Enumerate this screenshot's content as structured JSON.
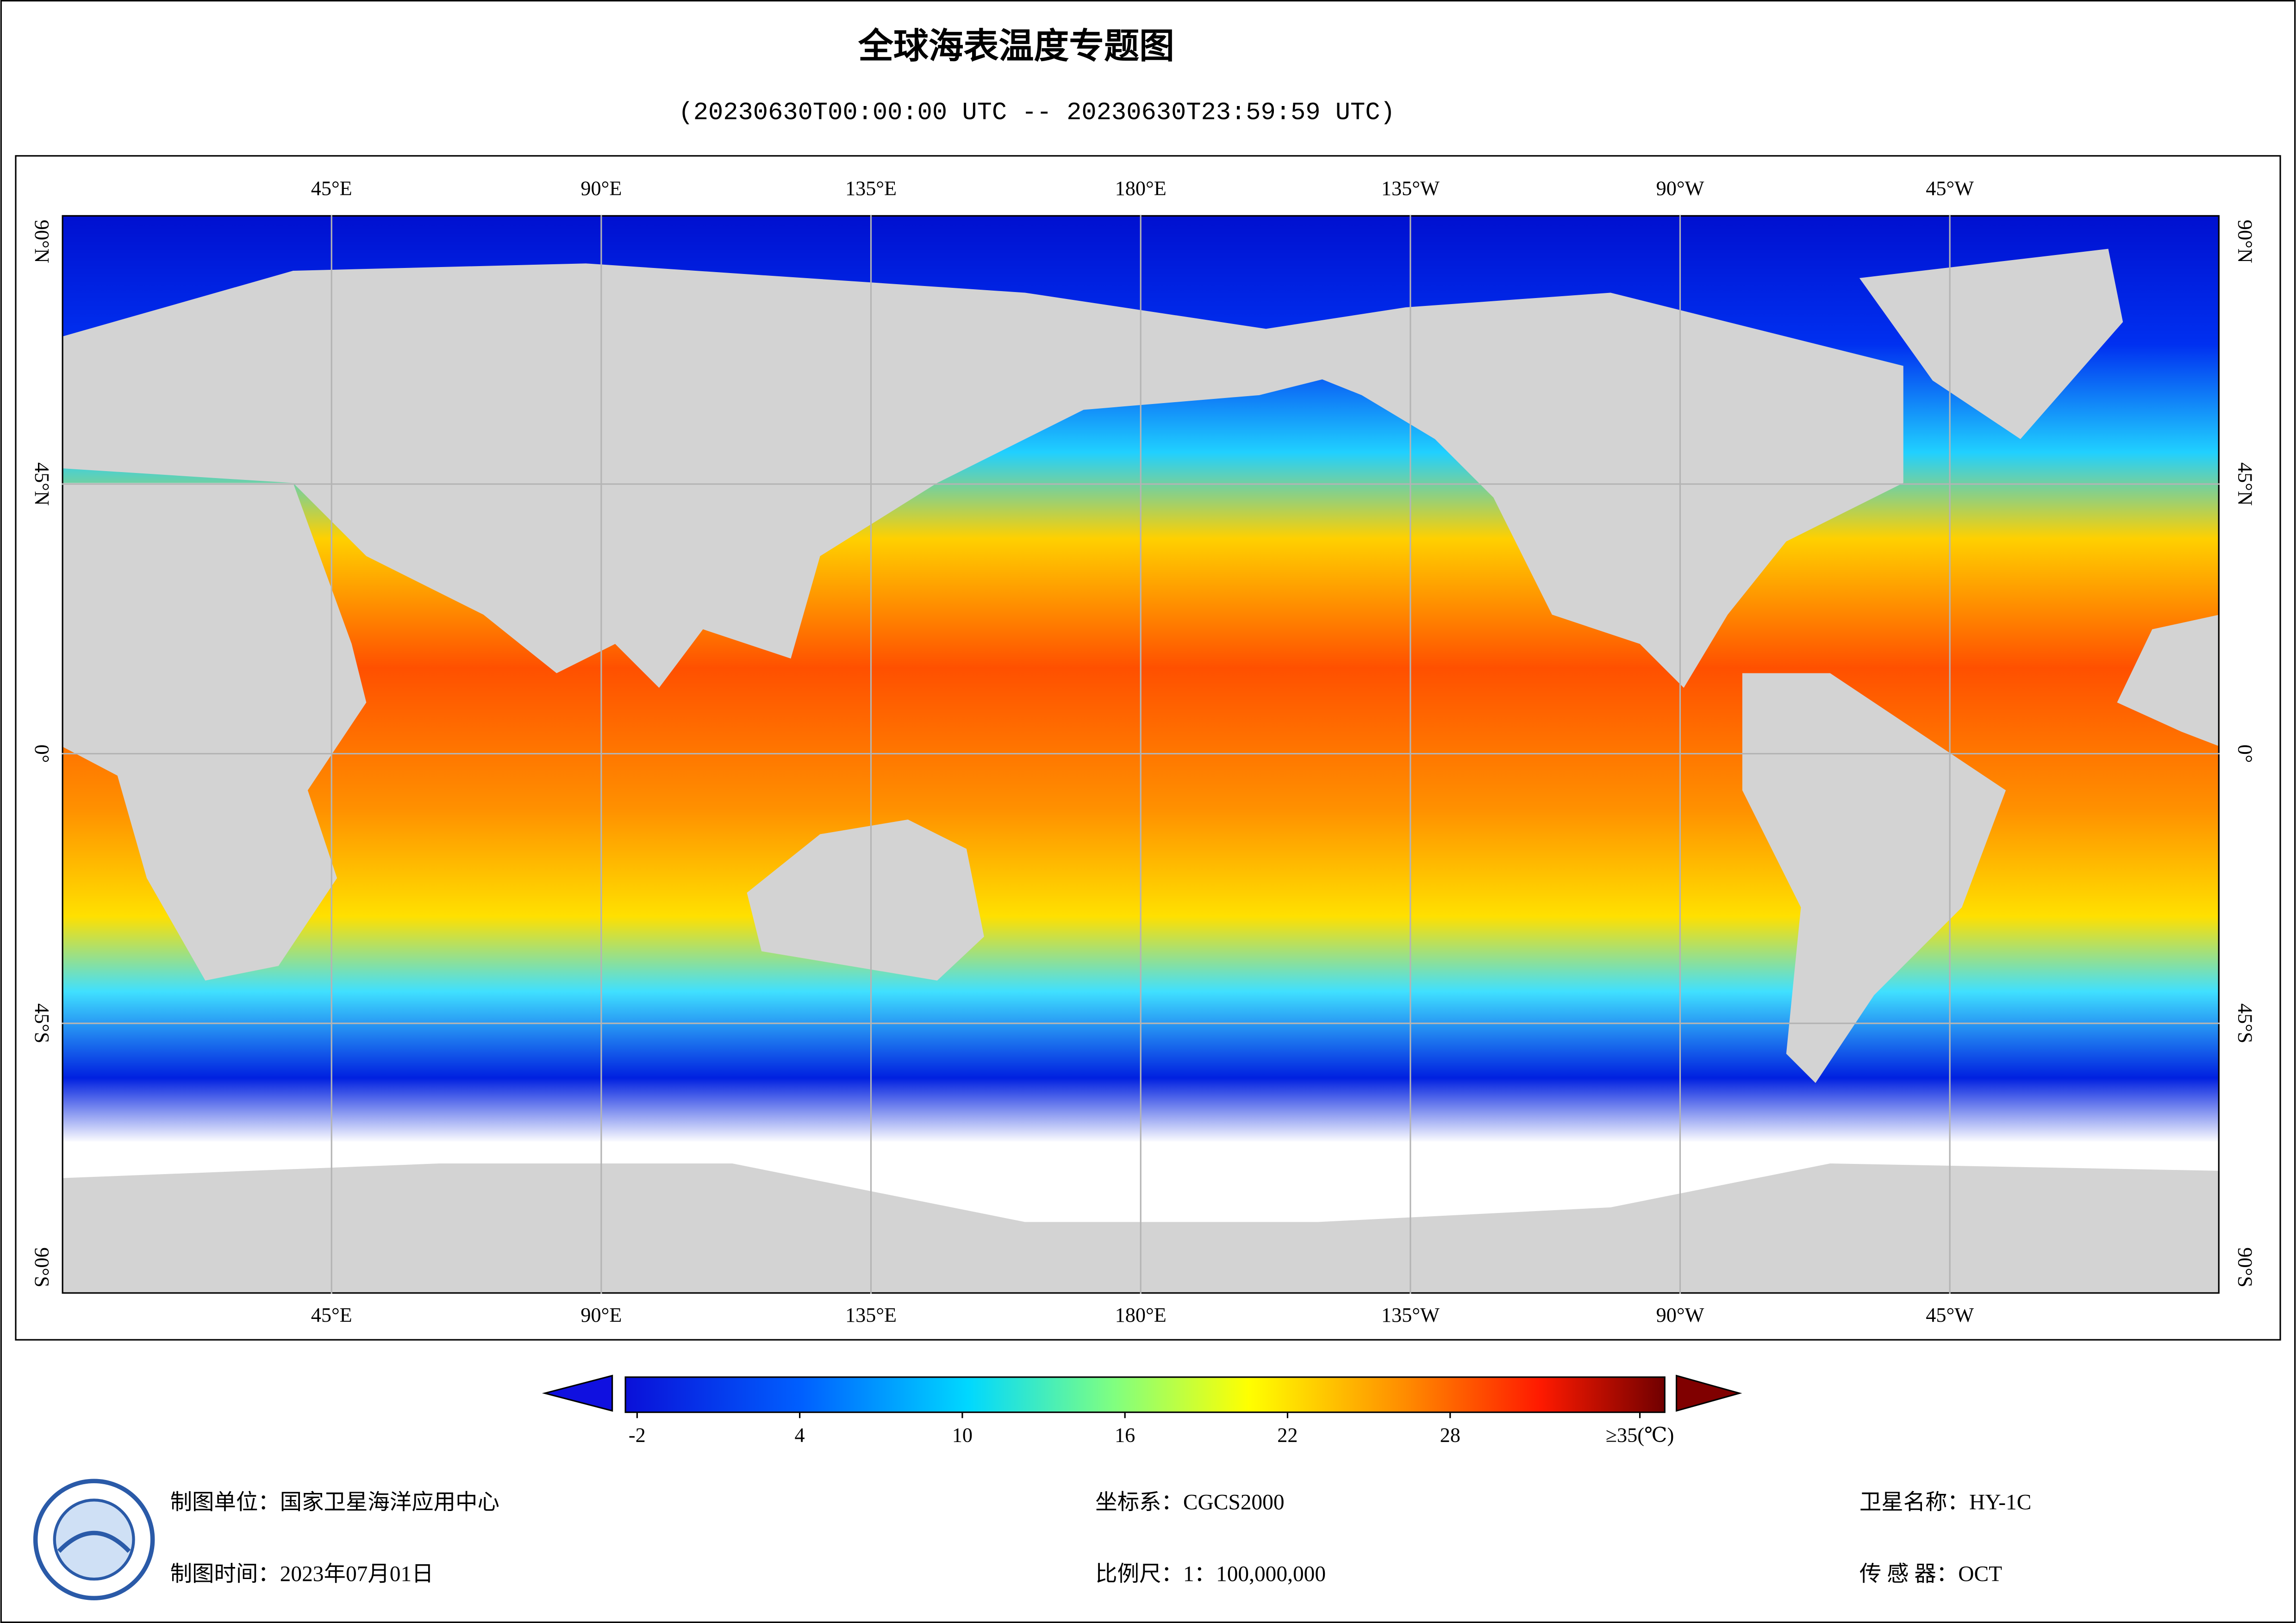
{
  "title": "全球海表温度专题图",
  "subtitle": "(20230630T00:00:00 UTC -- 20230630T23:59:59 UTC)",
  "map": {
    "lon_ticks": [
      {
        "value": 45,
        "label": "45°E"
      },
      {
        "value": 90,
        "label": "90°E"
      },
      {
        "value": 135,
        "label": "135°E"
      },
      {
        "value": 180,
        "label": "180°E"
      },
      {
        "value": -135,
        "label": "135°W"
      },
      {
        "value": -90,
        "label": "90°W"
      },
      {
        "value": -45,
        "label": "45°W"
      }
    ],
    "lat_ticks": [
      {
        "value": 90,
        "label": "90°N"
      },
      {
        "value": 45,
        "label": "45°N"
      },
      {
        "value": 0,
        "label": "0°"
      },
      {
        "value": -45,
        "label": "45°S"
      },
      {
        "value": -90,
        "label": "90°S"
      }
    ]
  },
  "colorbar": {
    "lim": [
      -2,
      35
    ],
    "ticks": [
      -2,
      4,
      10,
      16,
      22,
      28,
      {
        "value": 35,
        "label": "≥35(℃)"
      }
    ]
  },
  "footer": [
    "制图单位：国家卫星海洋应用中心",
    "制图时间：2023年07月01日",
    "坐标系：CGCS2000",
    "比例尺：1：100,000,000",
    "卫星名称：HY-1C",
    "传 感 器：OCT"
  ]
}
